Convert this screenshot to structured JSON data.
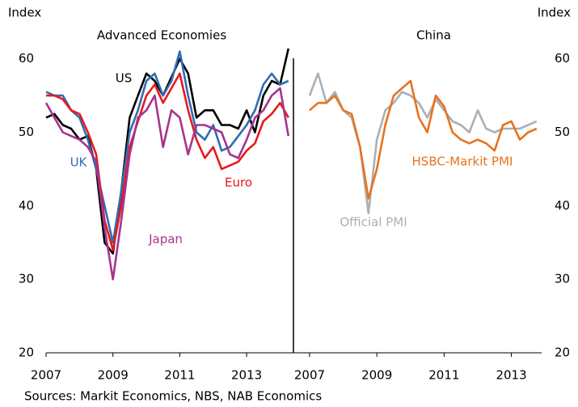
{
  "chart_data": [
    {
      "type": "line",
      "title": "Advanced Economies",
      "ylabel": "Index",
      "xlim": [
        2007,
        2014.4
      ],
      "xticks": [
        2007,
        2009,
        2011,
        2013
      ],
      "ylim": [
        20,
        61.4
      ],
      "yticks": [
        20,
        30,
        40,
        50,
        60
      ],
      "x": [
        2007,
        2007.25,
        2007.5,
        2007.75,
        2008,
        2008.25,
        2008.5,
        2008.75,
        2009,
        2009.25,
        2009.5,
        2009.75,
        2010,
        2010.25,
        2010.5,
        2010.75,
        2011,
        2011.25,
        2011.5,
        2011.75,
        2012,
        2012.25,
        2012.5,
        2012.75,
        2013,
        2013.25,
        2013.5,
        2013.75,
        2014,
        2014.25
      ],
      "series": [
        {
          "name": "US",
          "color": "#000000",
          "values": [
            52,
            52.5,
            51,
            50.5,
            49,
            49.5,
            45,
            35,
            33.5,
            42,
            52,
            55,
            58,
            57,
            55,
            57.5,
            60,
            58,
            52,
            53,
            53,
            51,
            51,
            50.5,
            53,
            50,
            55,
            57,
            56.5,
            61.4
          ]
        },
        {
          "name": "UK",
          "color": "#2e6db4",
          "values": [
            55.5,
            55,
            55,
            53,
            52,
            49,
            45,
            40,
            35,
            42,
            50,
            53,
            57,
            58,
            55,
            57,
            61,
            55,
            50,
            49,
            51,
            47.5,
            48,
            49.5,
            51,
            53,
            56.5,
            58,
            56.5,
            57
          ]
        },
        {
          "name": "Euro",
          "color": "#e8191b",
          "values": [
            55,
            55,
            54.5,
            53,
            52.5,
            50,
            47,
            38,
            34,
            40,
            48,
            51.5,
            55,
            56.5,
            54,
            56,
            58,
            53,
            49,
            46.5,
            48,
            45,
            45.5,
            46,
            47.5,
            48.5,
            51.5,
            52.5,
            54,
            52
          ]
        },
        {
          "name": "Japan",
          "color": "#a6338f",
          "values": [
            54,
            52,
            50,
            49.5,
            49,
            48,
            46,
            37,
            30,
            38,
            47,
            52,
            53,
            55,
            48,
            53,
            52,
            47,
            51,
            51,
            50.5,
            50,
            47,
            46.5,
            49,
            52,
            53,
            55,
            56,
            49.5
          ]
        }
      ]
    },
    {
      "type": "line",
      "title": "China",
      "ylabel": "Index",
      "xlim": [
        2006.52,
        2013.9
      ],
      "xticks": [
        2007,
        2009,
        2011,
        2013
      ],
      "ylim": [
        20,
        61.4
      ],
      "yticks": [
        20,
        30,
        40,
        50,
        60
      ],
      "x": [
        2007,
        2007.25,
        2007.5,
        2007.75,
        2008,
        2008.25,
        2008.5,
        2008.75,
        2009,
        2009.25,
        2009.5,
        2009.75,
        2010,
        2010.25,
        2010.5,
        2010.75,
        2011,
        2011.25,
        2011.5,
        2011.75,
        2012,
        2012.25,
        2012.5,
        2012.75,
        2013,
        2013.25,
        2013.5,
        2013.75
      ],
      "series": [
        {
          "name": "Official PMI",
          "color": "#aab0b3",
          "values": [
            55,
            58,
            54,
            55.5,
            53,
            52,
            48,
            39,
            49,
            53,
            54,
            55.5,
            55,
            54,
            52,
            54.5,
            53,
            51.5,
            51,
            50,
            53,
            50.5,
            50,
            50.5,
            50.5,
            50.5,
            51,
            51.5
          ]
        },
        {
          "name": "HSBC-Markit PMI",
          "color": "#e8731e",
          "values": [
            53,
            54,
            54,
            55,
            53,
            52.5,
            48,
            41,
            45,
            51,
            55,
            56,
            57,
            52,
            50,
            55,
            53.5,
            50,
            49,
            48.5,
            49,
            48.5,
            47.5,
            51,
            51.5,
            49,
            50,
            50.5
          ]
        }
      ]
    }
  ],
  "source": "Sources: Markit Economics, NBS, NAB Economics"
}
